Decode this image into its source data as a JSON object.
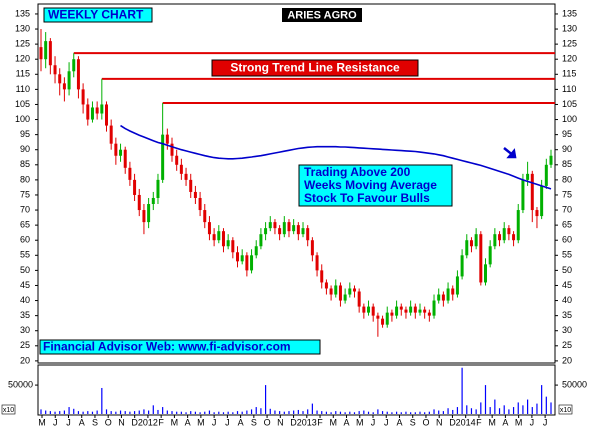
{
  "chart_data": {
    "type": "candlestick",
    "title": "ARIES AGRO",
    "subtitle": "WEEKLY CHART",
    "ylim": [
      19.3,
      138.3
    ],
    "yticks": [
      20,
      25,
      30,
      35,
      40,
      45,
      50,
      55,
      60,
      65,
      70,
      75,
      80,
      85,
      90,
      95,
      100,
      105,
      110,
      115,
      120,
      125,
      130,
      135
    ],
    "up_color": "#00b000",
    "down_color": "#e00000",
    "x_labels": [
      "M",
      "J",
      "J",
      "A",
      "S",
      "O",
      "N",
      "D",
      "2012",
      "F",
      "M",
      "A",
      "M",
      "J",
      "J",
      "A",
      "S",
      "O",
      "N",
      "D",
      "2013",
      "F",
      "M",
      "A",
      "M",
      "J",
      "J",
      "A",
      "S",
      "O",
      "N",
      "D",
      "2014",
      "F",
      "M",
      "A",
      "M",
      "J",
      "J"
    ],
    "ohlc": [
      [
        124,
        130,
        116,
        120
      ],
      [
        120,
        129,
        117,
        126
      ],
      [
        126,
        127,
        115,
        118
      ],
      [
        118,
        121,
        112,
        115
      ],
      [
        115,
        117,
        108,
        112
      ],
      [
        112,
        114,
        106,
        110
      ],
      [
        110,
        119,
        108,
        116
      ],
      [
        116,
        122,
        114,
        120
      ],
      [
        120,
        121,
        107,
        110
      ],
      [
        110,
        112,
        102,
        105
      ],
      [
        105,
        107,
        98,
        100
      ],
      [
        100,
        106,
        99,
        104
      ],
      [
        104,
        106,
        100,
        102
      ],
      [
        102,
        113.5,
        100,
        105
      ],
      [
        105,
        106,
        96,
        98
      ],
      [
        98,
        100,
        90,
        92
      ],
      [
        92,
        94,
        85,
        88
      ],
      [
        88,
        92,
        86,
        90
      ],
      [
        90,
        91,
        82,
        84
      ],
      [
        84,
        86,
        78,
        80
      ],
      [
        80,
        82,
        73,
        75
      ],
      [
        75,
        77,
        68,
        70
      ],
      [
        70,
        72,
        62,
        66
      ],
      [
        66,
        74,
        64,
        72
      ],
      [
        72,
        76,
        70,
        74
      ],
      [
        74,
        82,
        72,
        80
      ],
      [
        80,
        105.5,
        79,
        95
      ],
      [
        95,
        97,
        90,
        92
      ],
      [
        92,
        94,
        86,
        88
      ],
      [
        88,
        90,
        83,
        85
      ],
      [
        85,
        87,
        80,
        82
      ],
      [
        82,
        84,
        78,
        80
      ],
      [
        80,
        82,
        74,
        76
      ],
      [
        76,
        78,
        72,
        74
      ],
      [
        74,
        76,
        68,
        70
      ],
      [
        70,
        72,
        64,
        66
      ],
      [
        66,
        68,
        60,
        62
      ],
      [
        62,
        64,
        58,
        60
      ],
      [
        60,
        65,
        59,
        63
      ],
      [
        63,
        64,
        56,
        58
      ],
      [
        58,
        62,
        57,
        60
      ],
      [
        60,
        61,
        54,
        56
      ],
      [
        56,
        58,
        51,
        53
      ],
      [
        53,
        57,
        52,
        55
      ],
      [
        55,
        56,
        48,
        50
      ],
      [
        50,
        57,
        49,
        55
      ],
      [
        55,
        60,
        54,
        58
      ],
      [
        58,
        64,
        57,
        62
      ],
      [
        62,
        66,
        60,
        64
      ],
      [
        64,
        68,
        63,
        66
      ],
      [
        66,
        67,
        62,
        64
      ],
      [
        64,
        65,
        60,
        62
      ],
      [
        62,
        68,
        61,
        66
      ],
      [
        66,
        67,
        61,
        63
      ],
      [
        63,
        67,
        62,
        65
      ],
      [
        65,
        66,
        60,
        62
      ],
      [
        62,
        66,
        61,
        64
      ],
      [
        64,
        65,
        58,
        60
      ],
      [
        60,
        61,
        53,
        55
      ],
      [
        55,
        56,
        48,
        50
      ],
      [
        50,
        52,
        44,
        46
      ],
      [
        46,
        47,
        42,
        44
      ],
      [
        44,
        45,
        40,
        42
      ],
      [
        42,
        47,
        41,
        45
      ],
      [
        45,
        46,
        38,
        40
      ],
      [
        40,
        44,
        39,
        42
      ],
      [
        42,
        46,
        41,
        44
      ],
      [
        44,
        45,
        41,
        43
      ],
      [
        43,
        44,
        36,
        38
      ],
      [
        38,
        39,
        34,
        36
      ],
      [
        36,
        40,
        35,
        38
      ],
      [
        38,
        39,
        33,
        35
      ],
      [
        35,
        36,
        28,
        34
      ],
      [
        34,
        35,
        31,
        32
      ],
      [
        32,
        38,
        31,
        36
      ],
      [
        36,
        37,
        33,
        35
      ],
      [
        35,
        40,
        34,
        38
      ],
      [
        38,
        39,
        35,
        37
      ],
      [
        37,
        38,
        34,
        36
      ],
      [
        36,
        40,
        35,
        38
      ],
      [
        38,
        39,
        34,
        36
      ],
      [
        36,
        39,
        35,
        37
      ],
      [
        37,
        38,
        34,
        36
      ],
      [
        36,
        37,
        33,
        35
      ],
      [
        35,
        42,
        34,
        40
      ],
      [
        40,
        44,
        39,
        42
      ],
      [
        42,
        43,
        38,
        40
      ],
      [
        40,
        46,
        39,
        44
      ],
      [
        44,
        45,
        40,
        42
      ],
      [
        42,
        50,
        41,
        48
      ],
      [
        48,
        57,
        47,
        55
      ],
      [
        55,
        62,
        54,
        60
      ],
      [
        60,
        61,
        56,
        58
      ],
      [
        58,
        64,
        57,
        62
      ],
      [
        62,
        63,
        45,
        46
      ],
      [
        46,
        54,
        45,
        52
      ],
      [
        52,
        60,
        51,
        58
      ],
      [
        58,
        64,
        57,
        62
      ],
      [
        62,
        63,
        58,
        60
      ],
      [
        60,
        66,
        59,
        64
      ],
      [
        64,
        65,
        60,
        62
      ],
      [
        62,
        63,
        58,
        60
      ],
      [
        60,
        72,
        59,
        70
      ],
      [
        70,
        82,
        69,
        80
      ],
      [
        80,
        86,
        78,
        82
      ],
      [
        82,
        83,
        66,
        70
      ],
      [
        70,
        71,
        64,
        68
      ],
      [
        68,
        80,
        67,
        78
      ],
      [
        78,
        87,
        77,
        85
      ],
      [
        85,
        90,
        84,
        88
      ]
    ],
    "moving_average": {
      "color": "#0000cc",
      "values": [
        null,
        null,
        null,
        null,
        null,
        null,
        null,
        null,
        null,
        null,
        null,
        null,
        null,
        null,
        null,
        null,
        null,
        98,
        97,
        96.2,
        95.5,
        94.8,
        94.2,
        93.6,
        93,
        92.4,
        92,
        91.5,
        91,
        90.5,
        90,
        89.6,
        89.2,
        88.8,
        88.4,
        88,
        87.7,
        87.4,
        87.2,
        87.1,
        87,
        87,
        87.1,
        87.2,
        87.4,
        87.6,
        87.8,
        88,
        88.3,
        88.6,
        88.9,
        89.2,
        89.5,
        89.8,
        90.1,
        90.4,
        90.6,
        90.8,
        90.9,
        91,
        91,
        91,
        91,
        91,
        90.9,
        90.9,
        90.8,
        90.7,
        90.6,
        90.5,
        90.4,
        90.3,
        90.2,
        90.1,
        90,
        89.9,
        89.8,
        89.7,
        89.6,
        89.5,
        89.4,
        89.2,
        89,
        88.8,
        88.6,
        88.3,
        88,
        87.6,
        87.2,
        86.8,
        86.4,
        86,
        85.6,
        85.2,
        84.8,
        84.3,
        83.8,
        83.3,
        82.8,
        82.3,
        81.8,
        81.2,
        80.6,
        80,
        79.5,
        79,
        78.5,
        78,
        77.5,
        77
      ]
    },
    "resistance": {
      "color": "#e00000",
      "label": "Strong Trend Line Resistance",
      "levels": [
        122,
        113.5,
        105.5
      ]
    },
    "annotations": [
      "Trading Above 200",
      "Weeks Moving Average",
      "Stock To Favour Bulls"
    ],
    "footer": "Financial Advisor Web: www.fi-advisor.com",
    "volume": {
      "color": "#0000ff",
      "ylim": [
        0,
        83000
      ],
      "yticks": [
        50000
      ],
      "scale_label": "x10",
      "values": [
        8000,
        6000,
        5000,
        4000,
        5000,
        6000,
        12000,
        9000,
        5000,
        4000,
        5000,
        4000,
        6000,
        45000,
        8000,
        5000,
        4000,
        6000,
        5000,
        4000,
        5000,
        6000,
        8000,
        6000,
        15000,
        7000,
        12000,
        6000,
        5000,
        4000,
        4000,
        3000,
        5000,
        4000,
        3000,
        4000,
        6000,
        3000,
        4000,
        3000,
        4000,
        3000,
        5000,
        4000,
        6000,
        8000,
        12000,
        10000,
        50000,
        9000,
        6000,
        5000,
        4000,
        5000,
        6000,
        7000,
        5000,
        8000,
        18000,
        6000,
        5000,
        4000,
        3000,
        5000,
        4000,
        3000,
        4000,
        3000,
        5000,
        6000,
        4000,
        3000,
        8000,
        5000,
        4000,
        3000,
        4000,
        3000,
        4000,
        3000,
        3000,
        4000,
        3000,
        4000,
        8000,
        6000,
        5000,
        10000,
        7000,
        12000,
        80000,
        15000,
        10000,
        8000,
        20000,
        50000,
        12000,
        25000,
        10000,
        15000,
        8000,
        12000,
        20000,
        15000,
        25000,
        12000,
        18000,
        50000,
        30000,
        20000
      ]
    }
  }
}
